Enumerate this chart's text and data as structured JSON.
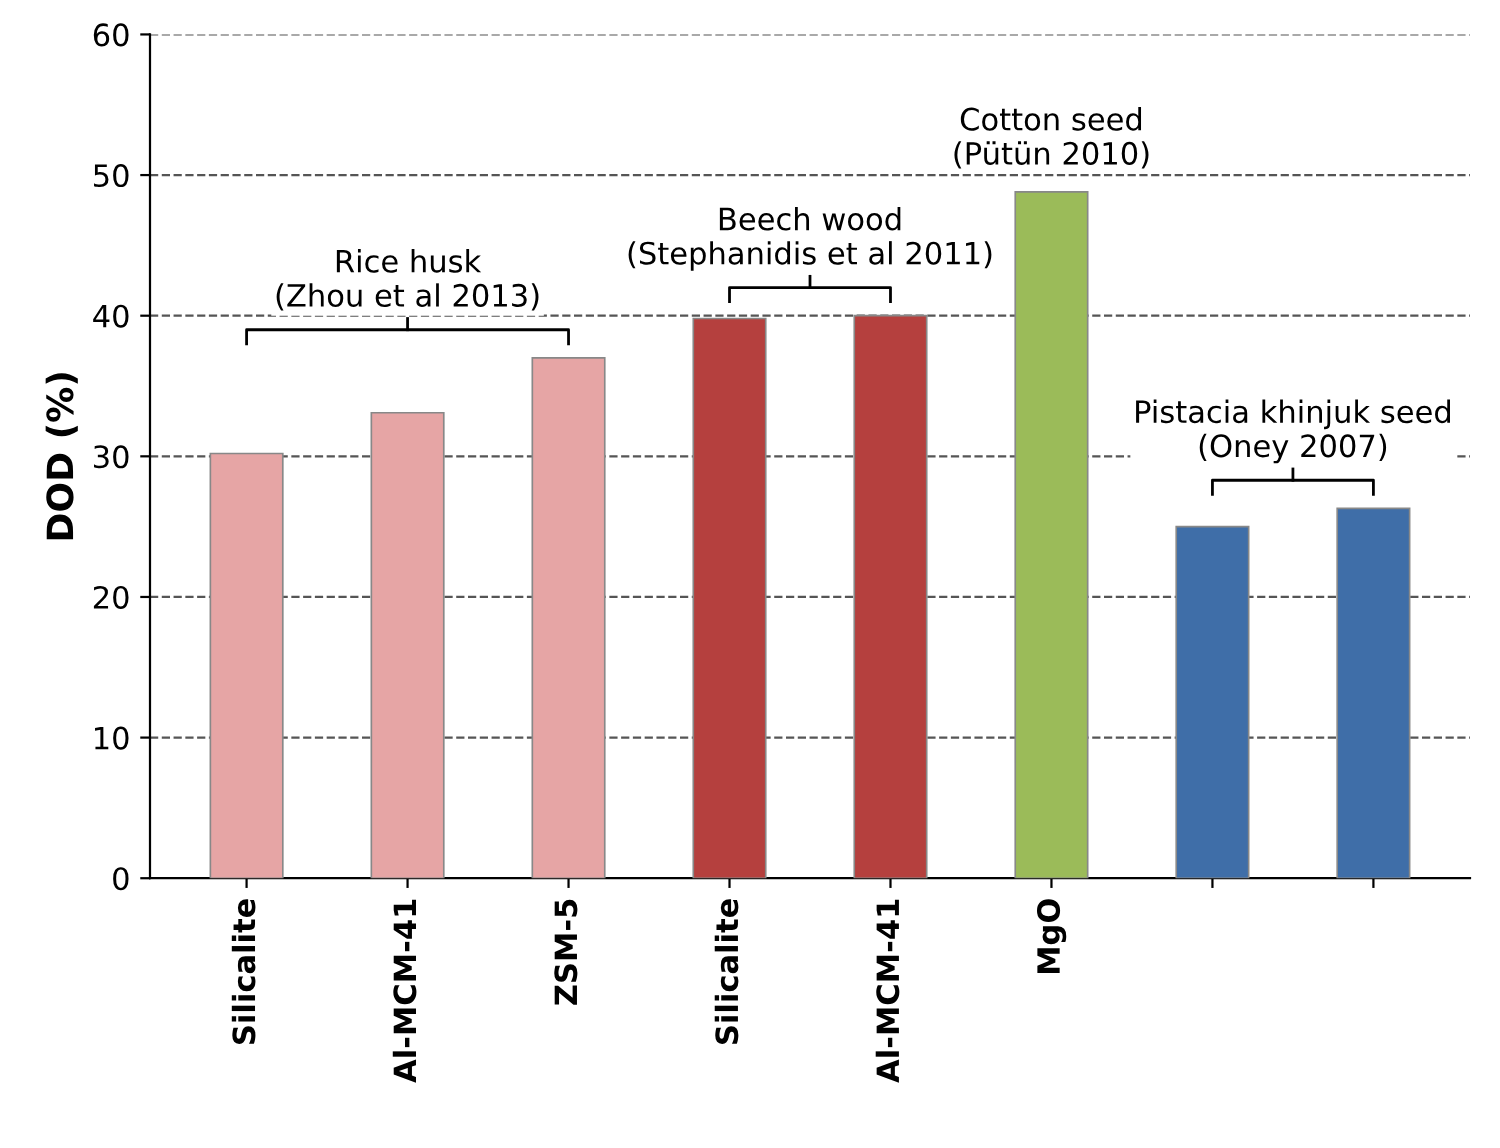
{
  "chart_data": {
    "type": "bar",
    "ylabel": "DOD (%)",
    "categories": [
      "Silicalite",
      "Al-MCM-41",
      "ZSM-5",
      "Silicalite",
      "Al-MCM-41",
      "MgO",
      null,
      null
    ],
    "values": [
      30.2,
      33.1,
      37,
      39.8,
      40,
      48.8,
      25,
      26.3
    ],
    "colors": [
      "#e6a5a5",
      "#e6a5a5",
      "#e6a5a5",
      "#b5403e",
      "#b5403e",
      "#9bbb59",
      "#3f6ea8",
      "#3f6ea8"
    ],
    "ylim": [
      0,
      60
    ],
    "yticks": [
      0,
      10,
      20,
      30,
      40,
      50,
      60
    ],
    "grid": "y",
    "annotations": [
      "Rice husk\n(Zhou et al 2013)",
      "Beech wood\n(Stephanidis et al 2011)",
      "Cotton seed\n(Pütün 2010)",
      "Pistacia khinjuk seed\n(Oney 2007)"
    ]
  }
}
